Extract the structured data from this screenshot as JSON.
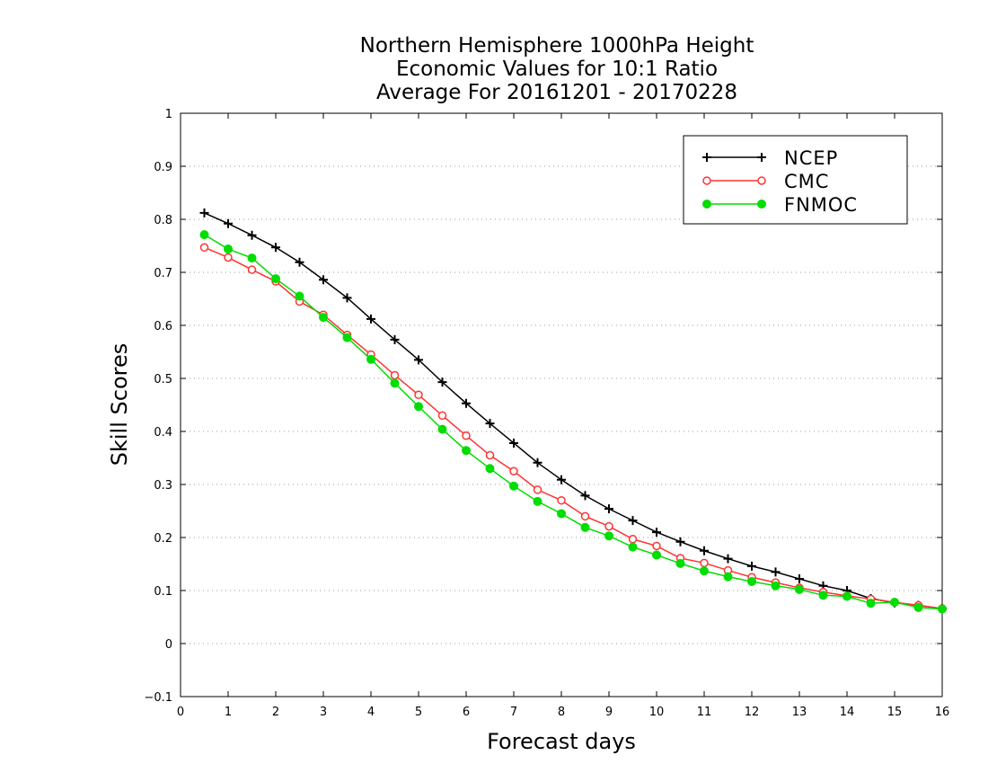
{
  "chart_data": {
    "type": "line",
    "title_lines": [
      "Northern Hemisphere 1000hPa Height",
      "Economic Values for 10:1 Ratio",
      "Average For 20161201 - 20170228"
    ],
    "xlabel": "Forecast days",
    "ylabel": "Skill Scores",
    "xlim": [
      0,
      16
    ],
    "ylim": [
      -0.1,
      1
    ],
    "xticks": [
      0,
      1,
      2,
      3,
      4,
      5,
      6,
      7,
      8,
      9,
      10,
      11,
      12,
      13,
      14,
      15,
      16
    ],
    "yticks": [
      -0.1,
      0,
      0.1,
      0.2,
      0.3,
      0.4,
      0.5,
      0.6,
      0.7,
      0.8,
      0.9,
      1
    ],
    "ytick_labels": [
      "−0.1",
      "0",
      "0.1",
      "0.2",
      "0.3",
      "0.4",
      "0.5",
      "0.6",
      "0.7",
      "0.8",
      "0.9",
      "1"
    ],
    "grid": "dotted horizontal",
    "legend_position": "top-right",
    "x": [
      0.5,
      1,
      1.5,
      2,
      2.5,
      3,
      3.5,
      4,
      4.5,
      5,
      5.5,
      6,
      6.5,
      7,
      7.5,
      8,
      8.5,
      9,
      9.5,
      10,
      10.5,
      11,
      11.5,
      12,
      12.5,
      13,
      13.5,
      14,
      14.5,
      15,
      15.5,
      16
    ],
    "series": [
      {
        "name": "NCEP",
        "color": "#000000",
        "marker": "plus",
        "values": [
          0.812,
          0.792,
          0.77,
          0.747,
          0.719,
          0.686,
          0.652,
          0.612,
          0.573,
          0.535,
          0.493,
          0.453,
          0.415,
          0.378,
          0.341,
          0.309,
          0.279,
          0.254,
          0.232,
          0.21,
          0.192,
          0.175,
          0.16,
          0.146,
          0.135,
          0.122,
          0.109,
          0.1,
          0.085,
          0.077,
          0.072,
          0.066
        ]
      },
      {
        "name": "CMC",
        "color": "#ff3333",
        "marker": "open-circle",
        "values": [
          0.747,
          0.728,
          0.705,
          0.683,
          0.645,
          0.62,
          0.582,
          0.545,
          0.506,
          0.469,
          0.43,
          0.392,
          0.355,
          0.325,
          0.29,
          0.27,
          0.24,
          0.221,
          0.197,
          0.184,
          0.161,
          0.152,
          0.138,
          0.125,
          0.115,
          0.105,
          0.097,
          0.09,
          0.084,
          0.078,
          0.072,
          0.066
        ]
      },
      {
        "name": "FNMOC",
        "color": "#00dd00",
        "marker": "filled-circle",
        "values": [
          0.771,
          0.744,
          0.727,
          0.688,
          0.655,
          0.615,
          0.577,
          0.536,
          0.491,
          0.447,
          0.404,
          0.364,
          0.33,
          0.297,
          0.268,
          0.245,
          0.219,
          0.203,
          0.182,
          0.167,
          0.151,
          0.137,
          0.126,
          0.117,
          0.109,
          0.102,
          0.091,
          0.089,
          0.076,
          0.078,
          0.068,
          0.065
        ]
      }
    ]
  }
}
